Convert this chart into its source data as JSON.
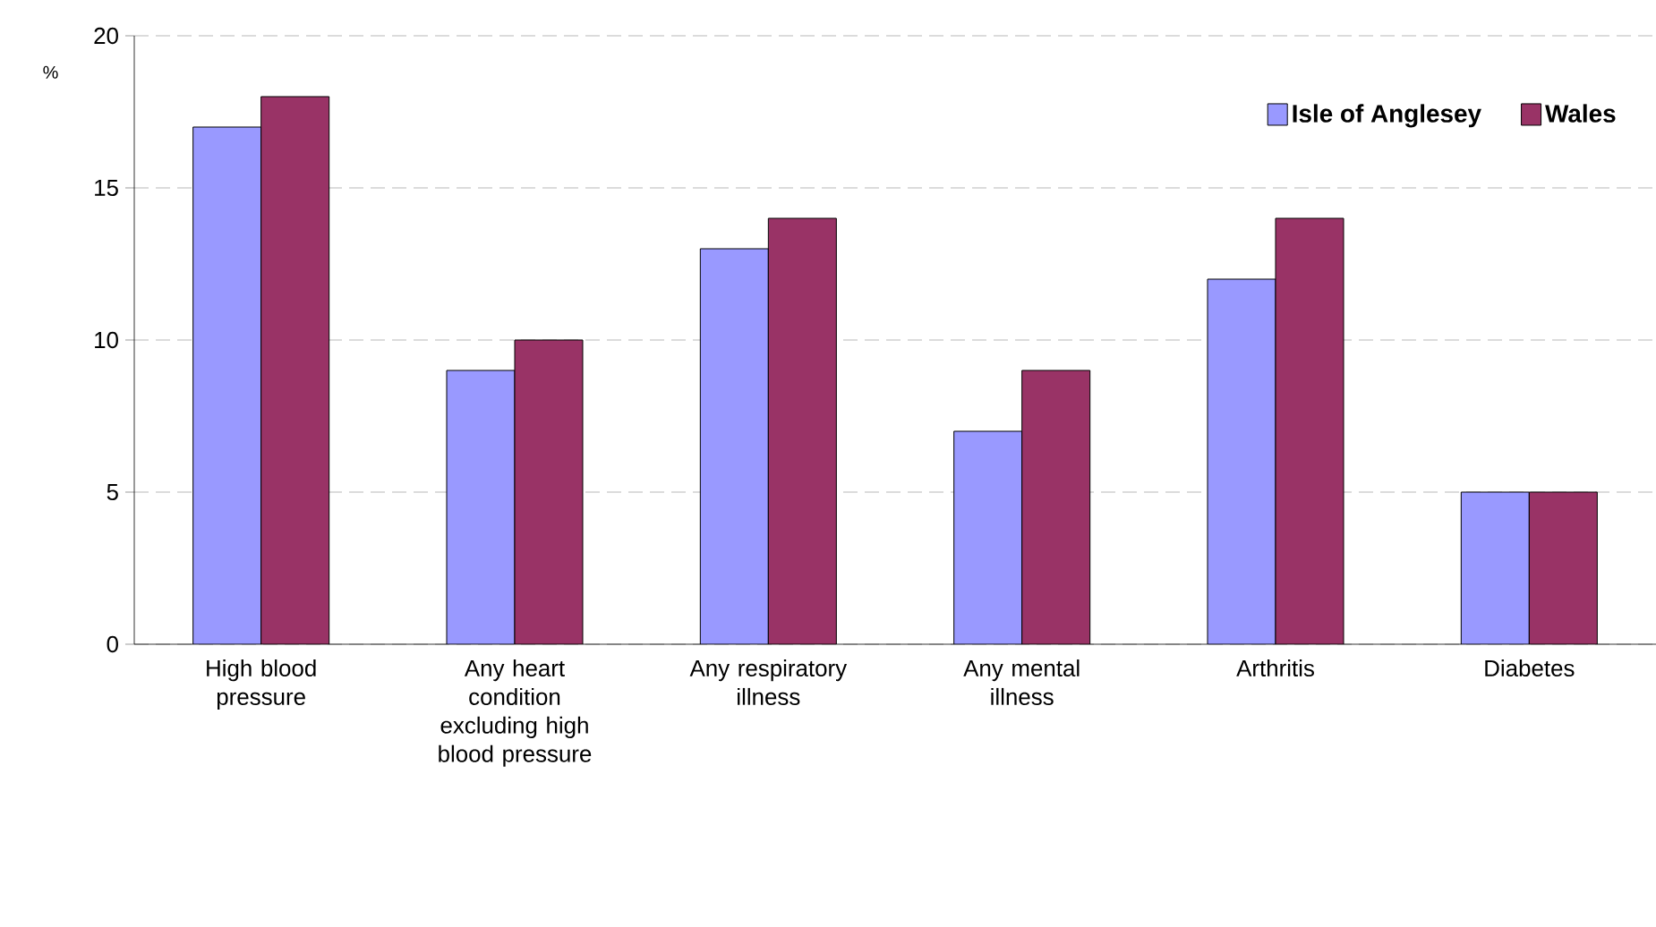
{
  "chart_data": {
    "type": "bar",
    "ylabel": "%",
    "categories": [
      "High blood pressure",
      "Any heart condition excluding high blood pressure",
      "Any respiratory illness",
      "Any mental illness",
      "Arthritis",
      "Diabetes"
    ],
    "series": [
      {
        "name": "Isle of Anglesey",
        "color": "#9999ff",
        "values": [
          17,
          9,
          13,
          7,
          12,
          5
        ]
      },
      {
        "name": "Wales",
        "color": "#993366",
        "values": [
          18,
          10,
          14,
          9,
          14,
          5
        ]
      }
    ],
    "ylim": [
      0,
      20
    ],
    "yticks": [
      0,
      5,
      10,
      15,
      20
    ],
    "grid": "y",
    "legend": "top right"
  }
}
